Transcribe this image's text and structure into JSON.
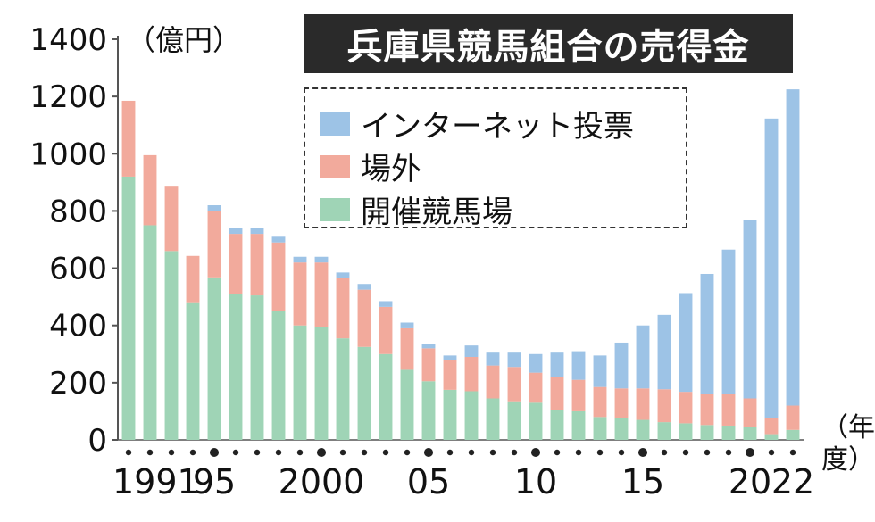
{
  "title": "兵庫県競馬組合の売得金",
  "unit": "（億円）",
  "x_unit": "（年度）",
  "colors": {
    "internet": "#9dc3e6",
    "offsite": "#f2aa9c",
    "onsite": "#9fd4b6",
    "axis": "#333333"
  },
  "legend": [
    {
      "key": "internet",
      "label": "インターネット投票",
      "color": "#9dc3e6"
    },
    {
      "key": "offsite",
      "label": "場外",
      "color": "#f2aa9c"
    },
    {
      "key": "onsite",
      "label": "開催競馬場",
      "color": "#9fd4b6"
    }
  ],
  "chart_data": {
    "type": "bar",
    "stacked": true,
    "title": "兵庫県競馬組合の売得金",
    "ylabel": "（億円）",
    "xlabel": "（年度）",
    "ylim": [
      0,
      1400
    ],
    "yticks": [
      0,
      200,
      400,
      600,
      800,
      1000,
      1200,
      1400
    ],
    "categories": [
      "1991",
      "1992",
      "1993",
      "1994",
      "1995",
      "1996",
      "1997",
      "1998",
      "1999",
      "2000",
      "2001",
      "2002",
      "2003",
      "2004",
      "2005",
      "2006",
      "2007",
      "2008",
      "2009",
      "2010",
      "2011",
      "2012",
      "2013",
      "2014",
      "2015",
      "2016",
      "2017",
      "2018",
      "2019",
      "2020",
      "2021",
      "2022"
    ],
    "x_tick_labels": [
      {
        "index": 0,
        "label": "1991"
      },
      {
        "index": 4,
        "label": "95"
      },
      {
        "index": 9,
        "label": "2000"
      },
      {
        "index": 14,
        "label": "05"
      },
      {
        "index": 19,
        "label": "10"
      },
      {
        "index": 24,
        "label": "15"
      },
      {
        "index": 29,
        "label": "20"
      },
      {
        "index": 31,
        "label": "22"
      }
    ],
    "dot_indices": [
      0,
      1,
      2,
      3,
      4,
      5,
      6,
      7,
      8,
      9,
      10,
      11,
      12,
      13,
      14,
      15,
      16,
      17,
      18,
      19,
      20,
      21,
      22,
      23,
      24,
      25,
      26,
      27,
      28,
      29,
      30,
      31
    ],
    "big_dot_indices": [
      4,
      9,
      14,
      19,
      24,
      29
    ],
    "series": [
      {
        "name": "開催競馬場",
        "key": "onsite",
        "values": [
          920,
          750,
          660,
          478,
          568,
          510,
          505,
          450,
          400,
          395,
          355,
          325,
          300,
          245,
          205,
          175,
          170,
          145,
          135,
          130,
          105,
          100,
          80,
          75,
          70,
          62,
          58,
          52,
          50,
          45,
          20,
          35
        ]
      },
      {
        "name": "場外",
        "key": "offsite",
        "values": [
          265,
          245,
          225,
          165,
          232,
          210,
          215,
          240,
          220,
          225,
          210,
          200,
          165,
          145,
          115,
          105,
          120,
          115,
          120,
          105,
          115,
          110,
          105,
          105,
          110,
          115,
          110,
          108,
          110,
          100,
          55,
          85
        ]
      },
      {
        "name": "インターネット投票",
        "key": "internet",
        "values": [
          0,
          0,
          0,
          0,
          20,
          20,
          20,
          20,
          20,
          20,
          20,
          20,
          20,
          20,
          15,
          15,
          40,
          45,
          50,
          65,
          85,
          100,
          110,
          160,
          220,
          260,
          345,
          420,
          505,
          625,
          1048,
          1105
        ]
      }
    ]
  }
}
